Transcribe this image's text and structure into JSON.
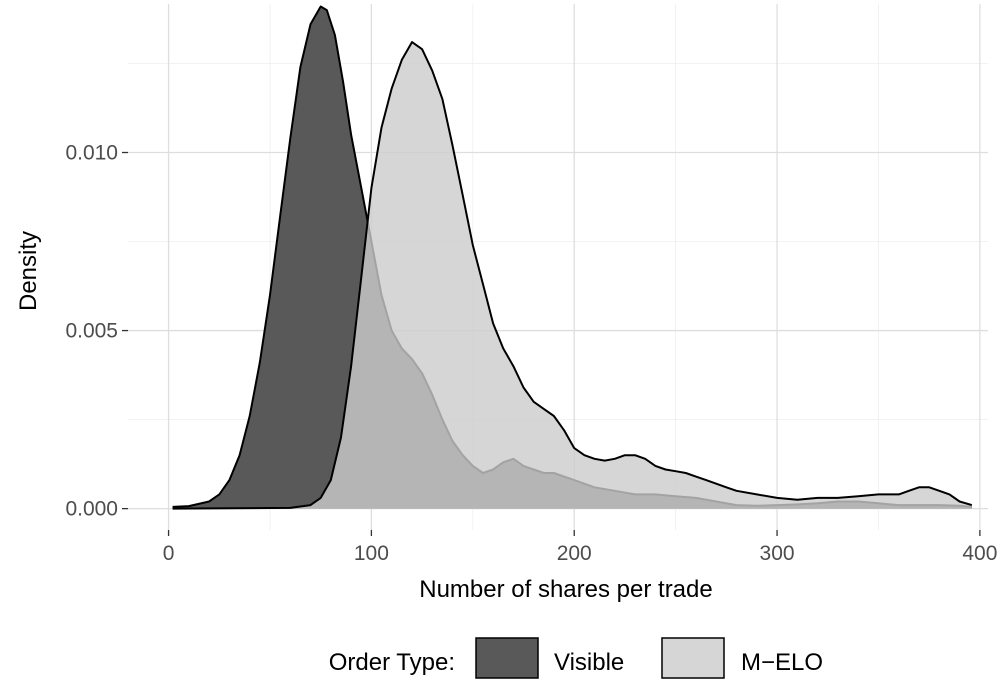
{
  "chart_data": {
    "type": "area",
    "subtype": "density",
    "xlabel": "Number of shares per trade",
    "ylabel": "Density",
    "xlim": [
      -20,
      404
    ],
    "ylim": [
      -0.0006,
      0.01417
    ],
    "x_ticks": [
      0,
      100,
      200,
      300,
      400
    ],
    "x_tick_labels": [
      "0",
      "100",
      "200",
      "300",
      "400"
    ],
    "y_ticks": [
      0.0,
      0.005,
      0.01
    ],
    "y_tick_labels": [
      "0.000",
      "0.005",
      "0.010"
    ],
    "x_minor_ticks": [
      50,
      150,
      250,
      350
    ],
    "y_minor_ticks": [
      0.0025,
      0.0075,
      0.0125
    ],
    "grid": true,
    "legend": {
      "title": "Order Type:",
      "placement": "bottom",
      "entries": [
        "Visible",
        "M−ELO"
      ]
    },
    "series": [
      {
        "name": "Visible",
        "fill": "#595959",
        "opacity": 1.0,
        "x": [
          2,
          10,
          20,
          25,
          30,
          35,
          40,
          45,
          50,
          55,
          60,
          65,
          70,
          75,
          78,
          82,
          86,
          90,
          95,
          100,
          105,
          110,
          115,
          120,
          125,
          130,
          135,
          140,
          145,
          150,
          155,
          160,
          165,
          170,
          175,
          180,
          185,
          190,
          195,
          200,
          210,
          220,
          230,
          240,
          250,
          260,
          270,
          280,
          290,
          300,
          310,
          320,
          330,
          340,
          350,
          360,
          370,
          380,
          390,
          396
        ],
        "y": [
          5e-05,
          7e-05,
          0.0002,
          0.0004,
          0.0008,
          0.0015,
          0.0026,
          0.0041,
          0.006,
          0.0082,
          0.0104,
          0.0124,
          0.0136,
          0.0141,
          0.014,
          0.0133,
          0.012,
          0.0105,
          0.009,
          0.0075,
          0.006,
          0.005,
          0.0045,
          0.0042,
          0.0038,
          0.0032,
          0.0025,
          0.0019,
          0.0015,
          0.0012,
          0.001,
          0.0011,
          0.0013,
          0.0014,
          0.0012,
          0.0011,
          0.001,
          0.001,
          0.0009,
          0.0008,
          0.0006,
          0.0005,
          0.0004,
          0.0004,
          0.00035,
          0.0003,
          0.0002,
          0.0001,
          8e-05,
          0.0001,
          0.00012,
          0.00015,
          0.0002,
          0.0002,
          0.00015,
          0.0001,
          0.0001,
          0.0001,
          8e-05,
          5e-05
        ]
      },
      {
        "name": "M−ELO",
        "fill": "#cccccc",
        "opacity": 0.8,
        "x": [
          2,
          60,
          70,
          75,
          80,
          85,
          90,
          95,
          100,
          105,
          110,
          115,
          120,
          125,
          130,
          135,
          140,
          145,
          150,
          155,
          160,
          165,
          170,
          175,
          180,
          185,
          190,
          195,
          200,
          205,
          210,
          215,
          220,
          225,
          230,
          235,
          240,
          245,
          250,
          255,
          260,
          265,
          270,
          275,
          280,
          290,
          300,
          310,
          320,
          330,
          340,
          350,
          360,
          365,
          370,
          375,
          380,
          385,
          390,
          396
        ],
        "y": [
          0.0,
          2e-05,
          0.0001,
          0.0003,
          0.0008,
          0.002,
          0.004,
          0.0065,
          0.009,
          0.0107,
          0.0118,
          0.0126,
          0.0131,
          0.0129,
          0.0123,
          0.0115,
          0.0102,
          0.0088,
          0.0074,
          0.0063,
          0.0052,
          0.0045,
          0.004,
          0.0034,
          0.003,
          0.0028,
          0.0026,
          0.0022,
          0.0017,
          0.0015,
          0.0014,
          0.00135,
          0.0014,
          0.0015,
          0.0015,
          0.0014,
          0.0012,
          0.0011,
          0.00105,
          0.001,
          0.0009,
          0.0008,
          0.0007,
          0.0006,
          0.0005,
          0.0004,
          0.0003,
          0.00025,
          0.0003,
          0.0003,
          0.00035,
          0.0004,
          0.0004,
          0.0005,
          0.0006,
          0.0006,
          0.0005,
          0.0004,
          0.0002,
          0.0001
        ]
      }
    ]
  }
}
